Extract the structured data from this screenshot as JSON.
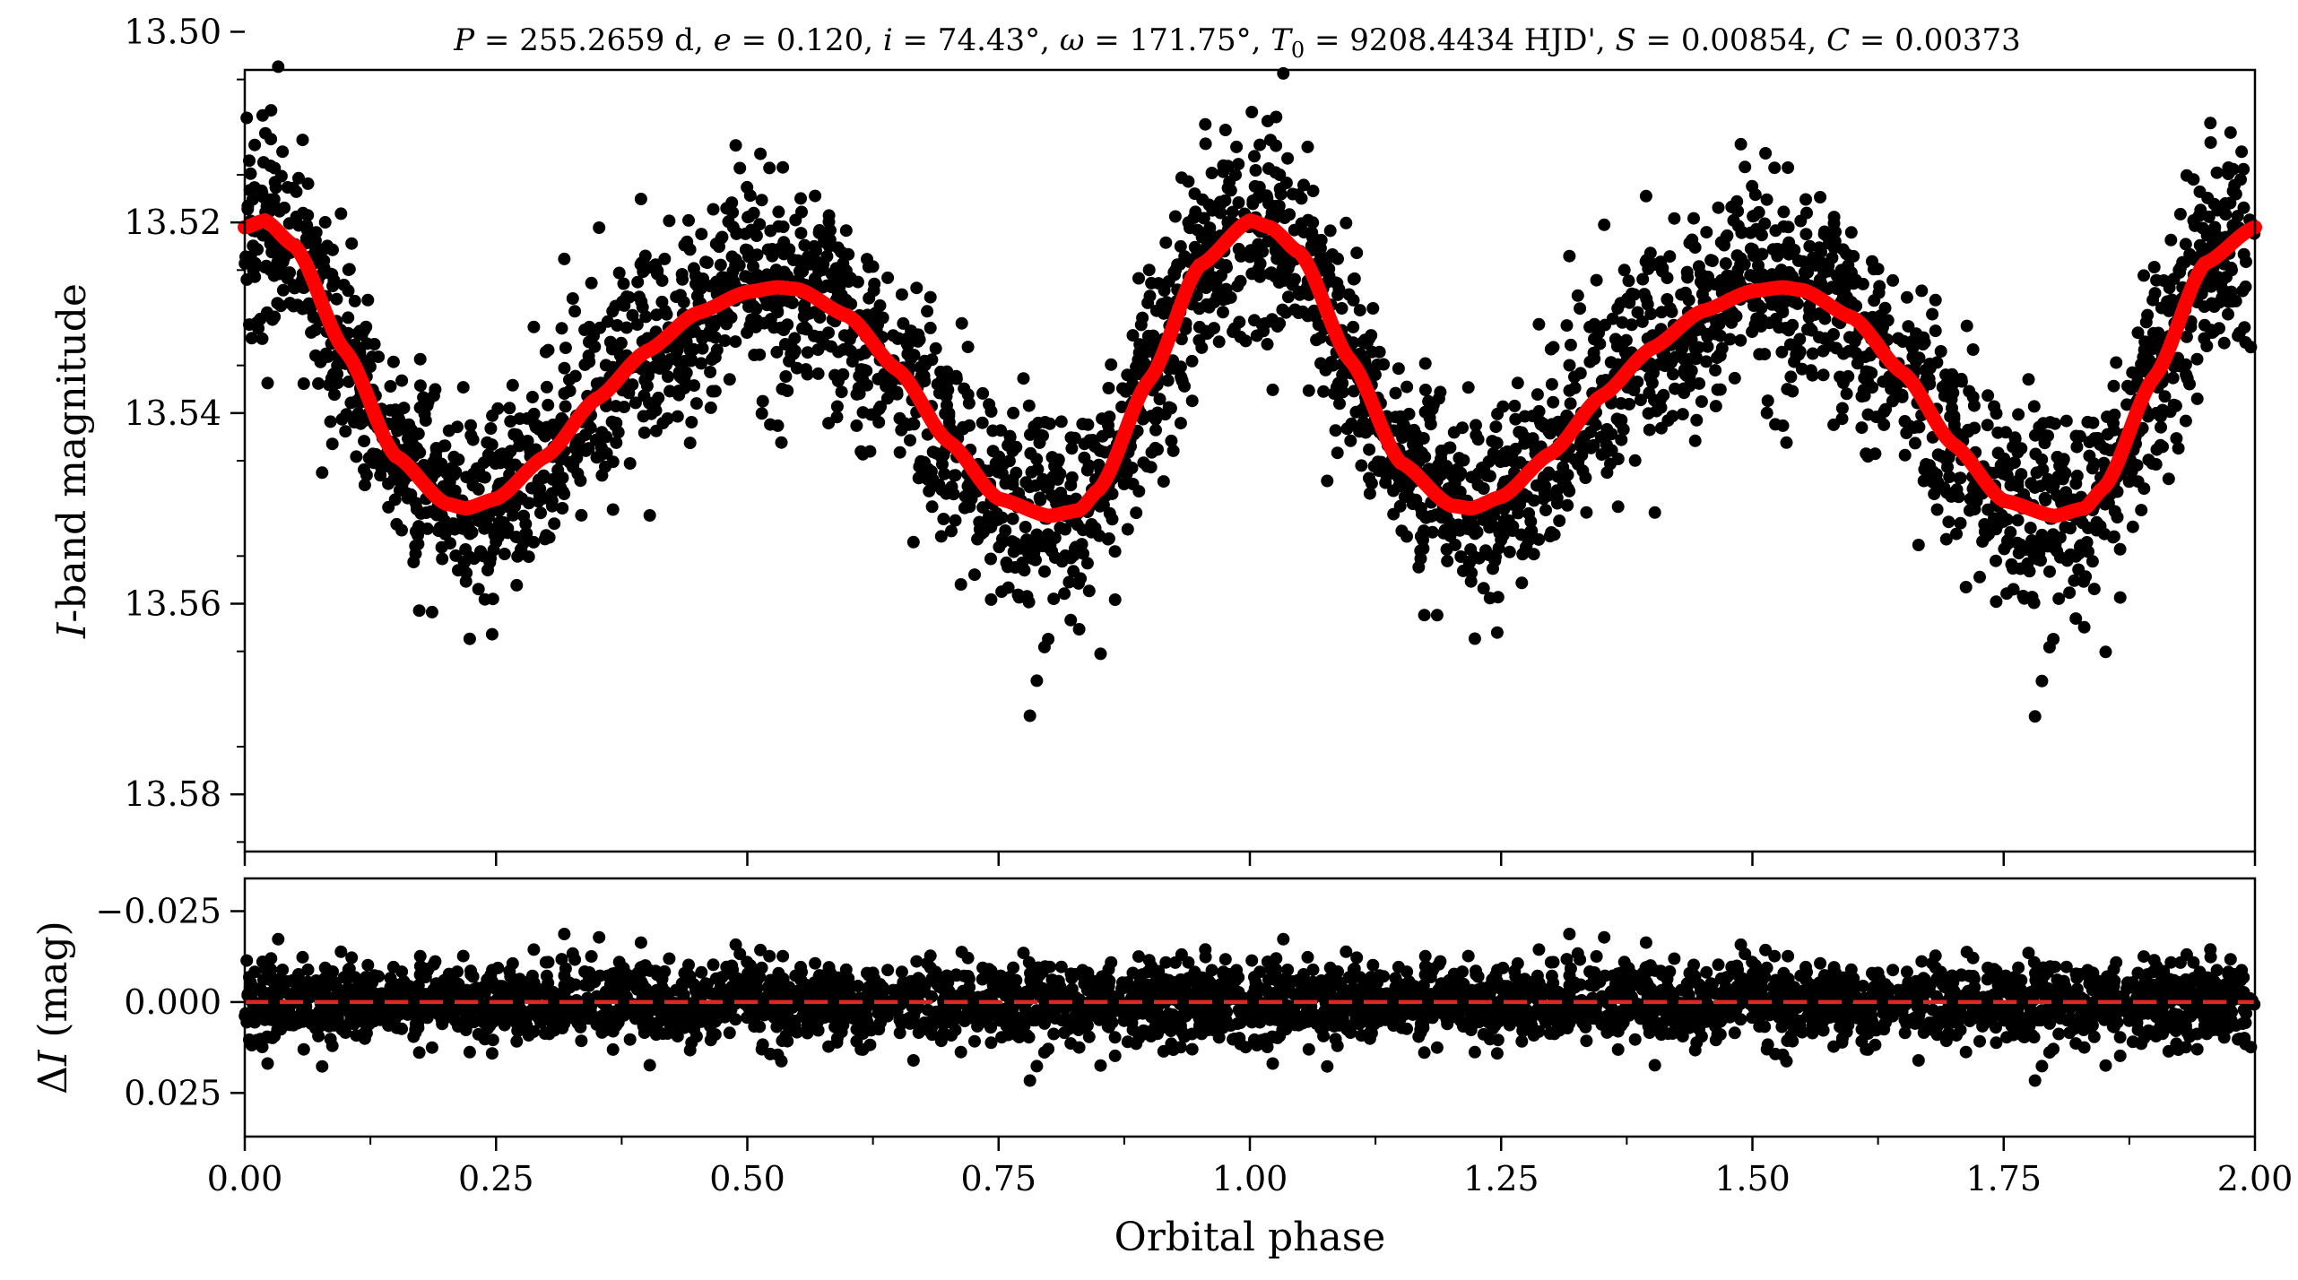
{
  "chart_data": [
    {
      "type": "scatter",
      "panel": "light-curve",
      "title": "P = 255.2659 d, e = 0.120, i = 74.43°, ω = 171.75°, T0 = 9208.4434 HJD', S = 0.00854, C = 0.00373",
      "title_parts": {
        "P": "P",
        "P_val": " = 255.2659 d, ",
        "e": "e",
        "e_val": " = 0.120, ",
        "i": "i",
        "i_val": " = 74.43°, ",
        "w": "ω",
        "w_val": " = 171.75°, ",
        "T": "T",
        "T_sub": "0",
        "T_val": " = 9208.4434 HJD', ",
        "S": "S",
        "S_val": " = 0.00854, ",
        "C": "C",
        "C_val": " = 0.00373"
      },
      "xlabel": "",
      "ylabel": "I-band magnitude",
      "ylabel_italic": "I",
      "ylabel_rest": "-band magnitude",
      "xlim": [
        0.0,
        2.0
      ],
      "ylim": [
        13.586,
        13.504
      ],
      "y_inverted": true,
      "yticks": [
        13.5,
        13.52,
        13.54,
        13.56,
        13.58
      ],
      "ytick_labels": [
        "13.50",
        "13.52",
        "13.54",
        "13.56",
        "13.58"
      ],
      "xticks": [
        0.0,
        0.25,
        0.5,
        0.75,
        1.0,
        1.25,
        1.5,
        1.75,
        2.0
      ],
      "series": [
        {
          "kind": "points",
          "color": "#000000",
          "n_points_per_cycle": 1800,
          "scatter_sigma": 0.0052,
          "model": "observed magnitudes phased over two cycles"
        },
        {
          "kind": "model-curve",
          "color": "#ff0000",
          "x": [
            0.0,
            0.02,
            0.05,
            0.1,
            0.15,
            0.2,
            0.22,
            0.25,
            0.3,
            0.35,
            0.4,
            0.45,
            0.5,
            0.53,
            0.55,
            0.6,
            0.65,
            0.7,
            0.75,
            0.8,
            0.83,
            0.85,
            0.9,
            0.95,
            1.0,
            1.02,
            1.05,
            1.1,
            1.15,
            1.2,
            1.22,
            1.25,
            1.3,
            1.35,
            1.4,
            1.45,
            1.5,
            1.53,
            1.55,
            1.6,
            1.65,
            1.7,
            1.75,
            1.8,
            1.83,
            1.85,
            1.9,
            1.95,
            2.0
          ],
          "y": [
            13.5205,
            13.5198,
            13.5225,
            13.5335,
            13.5445,
            13.5495,
            13.55,
            13.549,
            13.5445,
            13.5385,
            13.5335,
            13.5295,
            13.5273,
            13.5268,
            13.527,
            13.5298,
            13.5355,
            13.543,
            13.549,
            13.5508,
            13.5502,
            13.548,
            13.5365,
            13.5245,
            13.5198,
            13.5205,
            13.5232,
            13.5345,
            13.5452,
            13.5497,
            13.55,
            13.5488,
            13.5442,
            13.5382,
            13.5332,
            13.5293,
            13.5272,
            13.5268,
            13.5271,
            13.53,
            13.5358,
            13.5433,
            13.5492,
            13.5508,
            13.55,
            13.5478,
            13.5362,
            13.5243,
            13.5205
          ]
        }
      ]
    },
    {
      "type": "scatter",
      "panel": "residuals",
      "xlabel": "Orbital phase",
      "ylabel": "ΔI (mag)",
      "ylabel_delta": "Δ",
      "ylabel_italic": "I",
      "ylabel_rest": " (mag)",
      "xlim": [
        0.0,
        2.0
      ],
      "ylim": [
        0.037,
        -0.034
      ],
      "y_inverted": true,
      "yticks": [
        -0.025,
        0.0,
        0.025
      ],
      "ytick_labels": [
        "−0.025",
        "0.000",
        "0.025"
      ],
      "xticks": [
        0.0,
        0.25,
        0.5,
        0.75,
        1.0,
        1.25,
        1.5,
        1.75,
        2.0
      ],
      "xtick_labels": [
        "0.00",
        "0.25",
        "0.50",
        "0.75",
        "1.00",
        "1.25",
        "1.50",
        "1.75",
        "2.00"
      ],
      "series": [
        {
          "kind": "points",
          "color": "#000000",
          "scatter_sigma": 0.0052,
          "model": "residuals about zero"
        },
        {
          "kind": "zero-line",
          "color": "#e8231f",
          "style": "dashed",
          "y": 0.0
        }
      ]
    }
  ]
}
